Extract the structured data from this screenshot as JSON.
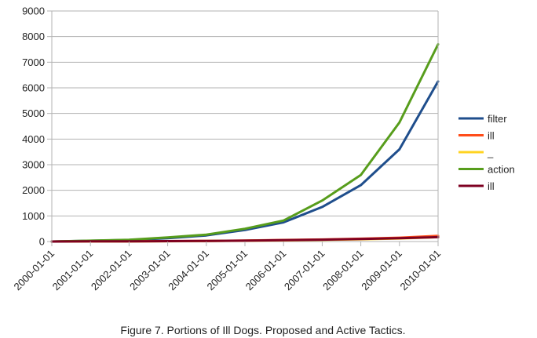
{
  "chart_data": {
    "type": "line",
    "title": "",
    "xlabel": "",
    "ylabel": "",
    "caption": "Figure 7. Portions of Ill Dogs. Proposed and Active Tactics.",
    "categories": [
      "2000-01-01",
      "2001-01-01",
      "2002-01-01",
      "2003-01-01",
      "2004-01-01",
      "2005-01-01",
      "2006-01-01",
      "2007-01-01",
      "2008-01-01",
      "2009-01-01",
      "2010-01-01"
    ],
    "ylim": [
      0,
      9000
    ],
    "yticks": [
      0,
      1000,
      2000,
      3000,
      4000,
      5000,
      6000,
      7000,
      8000,
      9000
    ],
    "grid": true,
    "legend_position": "right",
    "series": [
      {
        "name": "filter",
        "color": "#1f4e8c",
        "values": [
          0,
          30,
          60,
          130,
          240,
          450,
          750,
          1350,
          2200,
          3600,
          6250
        ]
      },
      {
        "name": "ill",
        "color": "#ff4d1a",
        "values": [
          0,
          5,
          10,
          15,
          25,
          40,
          60,
          80,
          110,
          150,
          220
        ]
      },
      {
        "name": "_",
        "color": "#ffd320",
        "values": [
          0,
          5,
          8,
          12,
          20,
          30,
          45,
          65,
          90,
          120,
          170
        ]
      },
      {
        "name": "action",
        "color": "#579d1c",
        "values": [
          0,
          35,
          70,
          160,
          270,
          500,
          820,
          1600,
          2600,
          4650,
          7700
        ]
      },
      {
        "name": "ill",
        "color": "#7e0021",
        "values": [
          0,
          5,
          10,
          15,
          25,
          35,
          55,
          75,
          100,
          130,
          170
        ]
      }
    ]
  }
}
